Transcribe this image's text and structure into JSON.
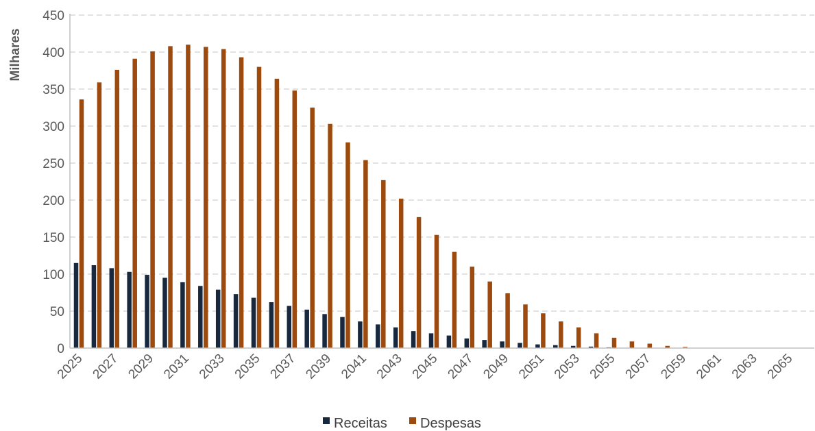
{
  "colors": {
    "receitas": "#17283f",
    "despesas": "#9c4a0d"
  },
  "chart_data": {
    "type": "bar",
    "ylabel": "Milhares",
    "ylim": [
      0,
      450
    ],
    "yticks": [
      0,
      50,
      100,
      150,
      200,
      250,
      300,
      350,
      400,
      450
    ],
    "grid": true,
    "legend_position": "bottom",
    "categories": [
      "2025",
      "2026",
      "2027",
      "2028",
      "2029",
      "2030",
      "2031",
      "2032",
      "2033",
      "2034",
      "2035",
      "2036",
      "2037",
      "2038",
      "2039",
      "2040",
      "2041",
      "2042",
      "2043",
      "2044",
      "2045",
      "2046",
      "2047",
      "2048",
      "2049",
      "2050",
      "2051",
      "2052",
      "2053",
      "2054",
      "2055",
      "2056",
      "2057",
      "2058",
      "2059",
      "2060",
      "2061",
      "2062",
      "2063",
      "2064",
      "2065",
      "2066"
    ],
    "xtick_labels": [
      "2025",
      "2027",
      "2029",
      "2031",
      "2033",
      "2035",
      "2037",
      "2039",
      "2041",
      "2043",
      "2045",
      "2047",
      "2049",
      "2051",
      "2053",
      "2055",
      "2057",
      "2059",
      "2061",
      "2063",
      "2065"
    ],
    "series": [
      {
        "name": "Receitas",
        "values": [
          115,
          112,
          108,
          103,
          99,
          95,
          89,
          84,
          79,
          73,
          68,
          62,
          57,
          52,
          46,
          42,
          36,
          32,
          28,
          23,
          20,
          17,
          13,
          11,
          9,
          7,
          5,
          4,
          3,
          2,
          1,
          0.5,
          0.3,
          0.2,
          0.1,
          0,
          0,
          0,
          0,
          0,
          0,
          0
        ]
      },
      {
        "name": "Despesas",
        "values": [
          336,
          359,
          376,
          391,
          401,
          408,
          410,
          407,
          404,
          393,
          380,
          364,
          348,
          325,
          303,
          278,
          254,
          227,
          202,
          177,
          153,
          130,
          110,
          90,
          74,
          59,
          47,
          36,
          28,
          20,
          14,
          9,
          6,
          3,
          1.5,
          0,
          0,
          0,
          0,
          0,
          0,
          0
        ]
      }
    ]
  }
}
